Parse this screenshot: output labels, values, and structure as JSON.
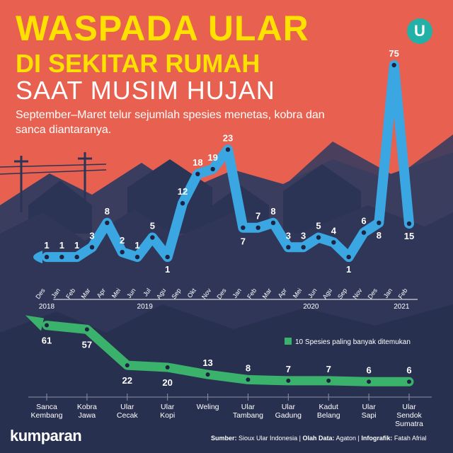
{
  "header": {
    "title_line1": "WASPADA ULAR",
    "title_line2": "DI SEKITAR RUMAH",
    "title_line3": "SAAT MUSIM HUJAN",
    "subtitle": "September–Maret telur sejumlah spesies menetas, kobra dan sanca diantaranya.",
    "logo_letter": "U"
  },
  "footer": {
    "brand": "kumparan",
    "source_label": "Sumber:",
    "source_value": "Sioux Ular Indonesia",
    "data_label": "Olah Data:",
    "data_value": "Agaton",
    "infographic_label": "Infografik:",
    "infographic_value": "Fatah Afrial",
    "separator": "|"
  },
  "colors": {
    "sky": "#e8604f",
    "bg_dark": "#2c3455",
    "line_series": "#3aa7e2",
    "bar_series": "#3bb26b",
    "title": "#ffe100"
  },
  "chart_data": [
    {
      "type": "line",
      "categories": [
        "Des",
        "Jan",
        "Feb",
        "Mar",
        "Apr",
        "Mei",
        "Jun",
        "Jul",
        "Agu",
        "Sep",
        "Okt",
        "Nov",
        "Des",
        "Jan",
        "Feb",
        "Mar",
        "Apr",
        "Mei",
        "Jun",
        "Agu",
        "Sep",
        "Nov",
        "Des",
        "Jan",
        "Feb"
      ],
      "values": [
        1,
        1,
        1,
        3,
        8,
        2,
        1,
        5,
        1,
        12,
        18,
        19,
        23,
        7,
        7,
        8,
        3,
        3,
        5,
        4,
        1,
        6,
        8,
        75,
        15
      ],
      "year_groups": [
        {
          "label": "2018",
          "from": 0,
          "to": 0
        },
        {
          "label": "2019",
          "from": 1,
          "to": 12
        },
        {
          "label": "2020",
          "from": 13,
          "to": 22
        },
        {
          "label": "2021",
          "from": 23,
          "to": 24
        }
      ],
      "title": "",
      "xlabel": "",
      "ylabel": ""
    },
    {
      "type": "line",
      "legend": "10 Spesies paling banyak ditemukan",
      "legend_position": "right",
      "categories": [
        "Sanca Kembang",
        "Kobra Jawa",
        "Ular Cecak",
        "Ular Kopi",
        "Weling",
        "Ular Tambang",
        "Ular Gadung",
        "Kadut Belang",
        "Ular Sapi",
        "Ular Sendok Sumatra"
      ],
      "values": [
        61,
        57,
        22,
        20,
        13,
        8,
        7,
        7,
        6,
        6
      ]
    }
  ]
}
